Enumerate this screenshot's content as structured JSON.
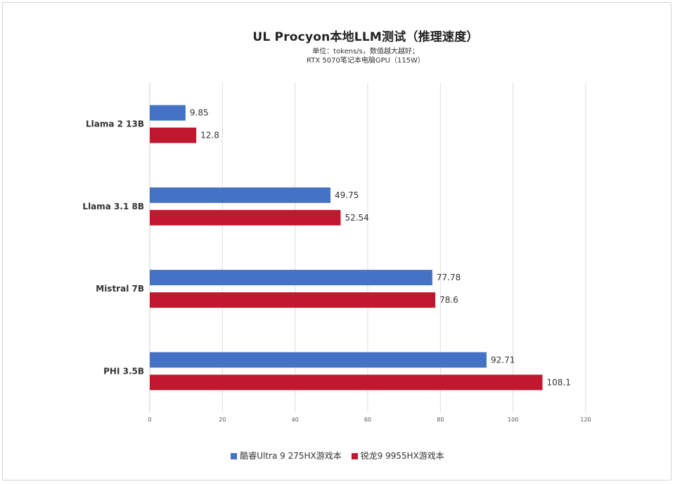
{
  "chart_data": {
    "type": "bar",
    "orientation": "horizontal",
    "title": "UL Procyon本地LLM测试（推理速度）",
    "subtitle": "单位：tokens/s，数值越大越好；",
    "subtitle2": "RTX 5070笔记本电脑GPU（115W）",
    "categories": [
      "Llama 2 13B",
      "Llama 3.1 8B",
      "Mistral 7B",
      "PHI 3.5B"
    ],
    "series": [
      {
        "name": "酷睿Ultra 9 275HX游戏本",
        "color": "#4472c4",
        "values": [
          9.85,
          49.75,
          77.78,
          92.71
        ]
      },
      {
        "name": "锐龙9 9955HX游戏本",
        "color": "#c0182e",
        "values": [
          12.8,
          52.54,
          78.6,
          108.1
        ]
      }
    ],
    "value_labels": [
      [
        "9.85",
        "49.75",
        "77.78",
        "92.71"
      ],
      [
        "12.8",
        "52.54",
        "78.6",
        "108.1"
      ]
    ],
    "xlim": [
      0,
      120
    ],
    "xticks": [
      "0",
      "20",
      "40",
      "60",
      "80",
      "100",
      "120"
    ],
    "grid": true,
    "legend_position": "bottom"
  }
}
